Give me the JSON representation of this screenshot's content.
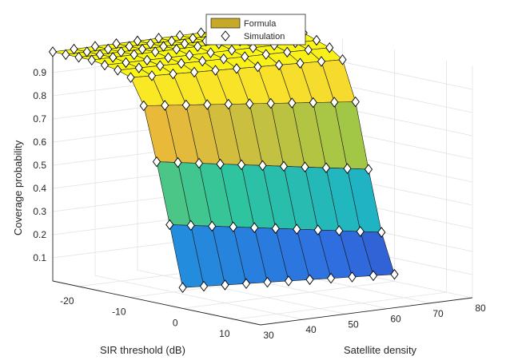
{
  "chart_data": {
    "type": "surface",
    "xlabel": "SIR threshold (dB)",
    "ylabel": "Satellite density",
    "zlabel": "Coverage probability",
    "x_ticks": [
      "-20",
      "-10",
      "0",
      "10"
    ],
    "y_ticks": [
      "30",
      "40",
      "50",
      "60",
      "70",
      "80"
    ],
    "z_ticks": [
      "0.1",
      "0.2",
      "0.3",
      "0.4",
      "0.5",
      "0.6",
      "0.7",
      "0.8",
      "0.9"
    ],
    "x_range": [
      -25,
      15
    ],
    "y_range": [
      30,
      80
    ],
    "z_range": [
      0,
      1
    ],
    "grid": true,
    "legend_position": "top-center",
    "legend": [
      {
        "label": "Formula",
        "marker": "patch",
        "color": "#c8a828"
      },
      {
        "label": "Simulation",
        "marker": "diamond",
        "color": "#ffffff"
      }
    ],
    "x": [
      -25,
      -22.5,
      -20,
      -17.5,
      -15,
      -12.5,
      -10,
      -7.5,
      -5,
      -2.5,
      0
    ],
    "y": [
      30,
      35,
      40,
      45,
      50,
      55,
      60,
      65,
      70,
      75,
      80
    ],
    "z_by_x": [
      0.99,
      0.99,
      0.99,
      0.99,
      0.98,
      0.97,
      0.95,
      0.84,
      0.61,
      0.35,
      0.09
    ],
    "z_density_slope": [
      0,
      0,
      0,
      0,
      0.0002,
      0.0004,
      0.0008,
      0.002,
      0.003,
      0.003,
      0.0012
    ],
    "colormap": [
      "#3e26a8",
      "#2f6fe0",
      "#18a9d8",
      "#2ec4a0",
      "#8ccc4a",
      "#e8b93a",
      "#f9e22a",
      "#f9fb0e"
    ]
  }
}
